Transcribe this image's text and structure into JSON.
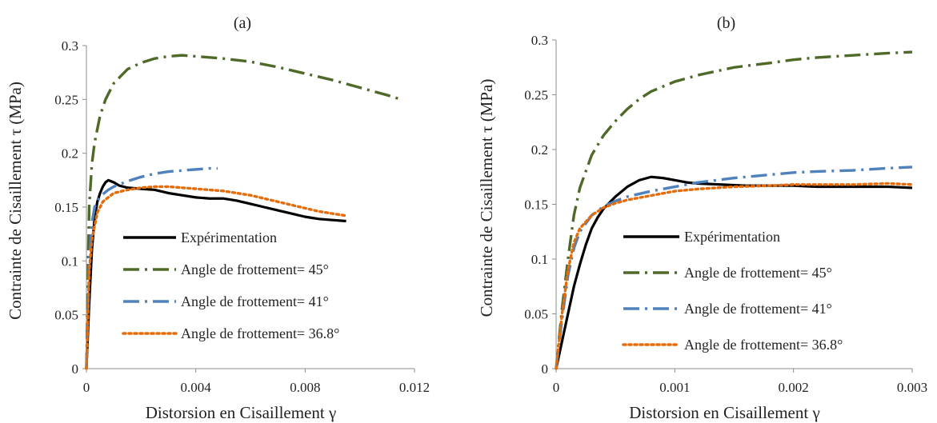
{
  "chart_data": [
    {
      "type": "line",
      "title": "(a)",
      "xlabel": "Distorsion en Cisaillement γ",
      "ylabel": "Contrainte de Cisaillement τ (MPa)",
      "xlim": [
        0,
        0.012
      ],
      "ylim": [
        0,
        0.3
      ],
      "xticks": [
        0,
        0.004,
        0.008,
        0.012
      ],
      "xtick_labels": [
        "0",
        "0.004",
        "0.008",
        "0.012"
      ],
      "yticks": [
        0,
        0.05,
        0.1,
        0.15,
        0.2,
        0.25,
        0.3
      ],
      "ytick_labels": [
        "0",
        "0.05",
        "0.1",
        "0.15",
        "0.2",
        "0.25",
        "0.3"
      ],
      "grid": false,
      "legend_position": "lower-left inside plot",
      "series": [
        {
          "name": "Expérimentation",
          "color": "#000000",
          "dash": "solid",
          "x": [
            0,
            0.0001,
            0.0002,
            0.0003,
            0.0004,
            0.0005,
            0.0006,
            0.0007,
            0.0008,
            0.001,
            0.0012,
            0.0015,
            0.002,
            0.0025,
            0.003,
            0.0035,
            0.004,
            0.0045,
            0.005,
            0.0055,
            0.006,
            0.0065,
            0.007,
            0.0075,
            0.008,
            0.0085,
            0.009,
            0.0095
          ],
          "y": [
            0,
            0.06,
            0.11,
            0.14,
            0.155,
            0.163,
            0.169,
            0.173,
            0.175,
            0.173,
            0.17,
            0.168,
            0.167,
            0.166,
            0.163,
            0.161,
            0.159,
            0.158,
            0.158,
            0.156,
            0.153,
            0.15,
            0.147,
            0.144,
            0.141,
            0.139,
            0.138,
            0.137
          ]
        },
        {
          "name": "Angle de frottement= 45°",
          "color": "#4f6a28",
          "dash": "dash-dot",
          "x": [
            0,
            0.0001,
            0.0002,
            0.0003,
            0.0005,
            0.0007,
            0.001,
            0.0015,
            0.002,
            0.0025,
            0.003,
            0.0035,
            0.004,
            0.0045,
            0.005,
            0.006,
            0.007,
            0.008,
            0.009,
            0.01,
            0.011,
            0.0115
          ],
          "y": [
            0,
            0.15,
            0.19,
            0.21,
            0.235,
            0.25,
            0.265,
            0.278,
            0.284,
            0.288,
            0.29,
            0.291,
            0.29,
            0.289,
            0.288,
            0.285,
            0.28,
            0.274,
            0.268,
            0.261,
            0.254,
            0.25
          ]
        },
        {
          "name": "Angle de frottement= 41°",
          "color": "#4f81bd",
          "dash": "dash-dot",
          "x": [
            0,
            0.0001,
            0.0002,
            0.0003,
            0.0005,
            0.0008,
            0.001,
            0.0015,
            0.002,
            0.0025,
            0.003,
            0.0035,
            0.004,
            0.0045,
            0.0048
          ],
          "y": [
            0,
            0.1,
            0.135,
            0.15,
            0.16,
            0.166,
            0.169,
            0.174,
            0.178,
            0.181,
            0.183,
            0.184,
            0.185,
            0.186,
            0.186
          ]
        },
        {
          "name": "Angle de frottement= 36.8°",
          "color": "#e46c0a",
          "dash": "dotted",
          "x": [
            0,
            0.0001,
            0.0002,
            0.0004,
            0.0006,
            0.001,
            0.0015,
            0.002,
            0.0025,
            0.003,
            0.0035,
            0.004,
            0.0045,
            0.005,
            0.0055,
            0.006,
            0.0065,
            0.007,
            0.0075,
            0.008,
            0.0085,
            0.009,
            0.0095
          ],
          "y": [
            0,
            0.09,
            0.12,
            0.145,
            0.155,
            0.163,
            0.166,
            0.168,
            0.169,
            0.169,
            0.168,
            0.167,
            0.166,
            0.165,
            0.163,
            0.161,
            0.158,
            0.155,
            0.152,
            0.149,
            0.146,
            0.144,
            0.142
          ]
        }
      ]
    },
    {
      "type": "line",
      "title": "(b)",
      "xlabel": "Distorsion en Cisaillement γ",
      "ylabel": "Contrainte de Cisaillement τ (MPa)",
      "xlim": [
        0,
        0.003
      ],
      "ylim": [
        0,
        0.3
      ],
      "xticks": [
        0,
        0.001,
        0.002,
        0.003
      ],
      "xtick_labels": [
        "0",
        "0.001",
        "0.002",
        "0.003"
      ],
      "yticks": [
        0,
        0.05,
        0.1,
        0.15,
        0.2,
        0.25,
        0.3
      ],
      "ytick_labels": [
        "0",
        "0.05",
        "0.1",
        "0.15",
        "0.2",
        "0.25",
        "0.3"
      ],
      "grid": false,
      "legend_position": "lower-right inside plot",
      "series": [
        {
          "name": "Expérimentation",
          "color": "#000000",
          "dash": "solid",
          "x": [
            0,
            5e-05,
            0.0001,
            0.00015,
            0.0002,
            0.00025,
            0.0003,
            0.00035,
            0.0004,
            0.0005,
            0.0006,
            0.0007,
            0.0008,
            0.0009,
            0.001,
            0.0011,
            0.0012,
            0.0014,
            0.0016,
            0.0018,
            0.002,
            0.0022,
            0.0025,
            0.0028,
            0.003
          ],
          "y": [
            0,
            0.025,
            0.05,
            0.075,
            0.095,
            0.113,
            0.128,
            0.138,
            0.146,
            0.157,
            0.166,
            0.172,
            0.175,
            0.174,
            0.172,
            0.17,
            0.169,
            0.168,
            0.167,
            0.167,
            0.167,
            0.166,
            0.166,
            0.166,
            0.165
          ]
        },
        {
          "name": "Angle de frottement= 45°",
          "color": "#4f6a28",
          "dash": "dash-dot",
          "x": [
            0,
            5e-05,
            0.0001,
            0.00015,
            0.0002,
            0.0003,
            0.0004,
            0.0005,
            0.0006,
            0.0007,
            0.0008,
            0.001,
            0.0012,
            0.0015,
            0.0018,
            0.002,
            0.0022,
            0.0025,
            0.0028,
            0.003
          ],
          "y": [
            0,
            0.055,
            0.1,
            0.14,
            0.165,
            0.195,
            0.213,
            0.226,
            0.237,
            0.246,
            0.253,
            0.262,
            0.268,
            0.275,
            0.279,
            0.282,
            0.284,
            0.286,
            0.288,
            0.289
          ]
        },
        {
          "name": "Angle de frottement= 41°",
          "color": "#4f81bd",
          "dash": "dash-dot",
          "x": [
            0,
            5e-05,
            0.0001,
            0.00015,
            0.0002,
            0.0003,
            0.0004,
            0.0005,
            0.0006,
            0.0008,
            0.001,
            0.0012,
            0.0015,
            0.0018,
            0.002,
            0.0022,
            0.0025,
            0.0028,
            0.003
          ],
          "y": [
            0,
            0.045,
            0.085,
            0.11,
            0.125,
            0.14,
            0.148,
            0.153,
            0.157,
            0.162,
            0.166,
            0.17,
            0.174,
            0.177,
            0.179,
            0.18,
            0.181,
            0.183,
            0.184
          ]
        },
        {
          "name": "Angle de frottement= 36.8°",
          "color": "#e46c0a",
          "dash": "dotted",
          "x": [
            0,
            5e-05,
            0.0001,
            0.00015,
            0.0002,
            0.0003,
            0.0004,
            0.0005,
            0.0006,
            0.0008,
            0.001,
            0.0012,
            0.0015,
            0.0018,
            0.002,
            0.0022,
            0.0025,
            0.0028,
            0.003
          ],
          "y": [
            0,
            0.05,
            0.09,
            0.115,
            0.128,
            0.14,
            0.147,
            0.151,
            0.154,
            0.158,
            0.162,
            0.164,
            0.166,
            0.167,
            0.168,
            0.168,
            0.168,
            0.169,
            0.168
          ]
        }
      ]
    }
  ]
}
